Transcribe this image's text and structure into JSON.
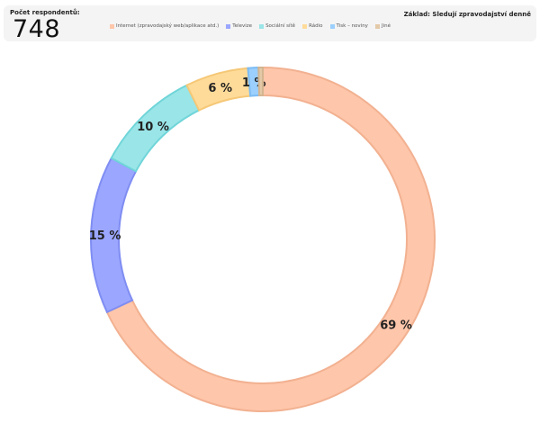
{
  "header": {
    "respondents_label": "Počet respondentů:",
    "respondents_count": "748",
    "base_label": "Základ: Sledují zpravodajství denně"
  },
  "chart_data": {
    "type": "pie",
    "donut": true,
    "categories": [
      "Internet (zpravodajský web/aplikace atd.)",
      "Televize",
      "Sociální sítě",
      "Rádio",
      "Tisk – noviny",
      "Jiné"
    ],
    "values": [
      69,
      15,
      10,
      6,
      1,
      0
    ],
    "display_values": [
      69,
      15,
      10,
      6,
      1,
      0.4
    ],
    "labels": [
      "69 %",
      "15 %",
      "10 %",
      "6 %",
      "1 %",
      ""
    ],
    "colors": [
      "#fec6aa",
      "#9ba6ff",
      "#9ae5e7",
      "#ffdb99",
      "#9bcffd",
      "#e3c9a7"
    ],
    "stroke_colors": [
      "#f2b191",
      "#7f8df2",
      "#6fd5d9",
      "#f5c877",
      "#7cbcf3",
      "#d3b590"
    ],
    "legend_position": "top"
  }
}
